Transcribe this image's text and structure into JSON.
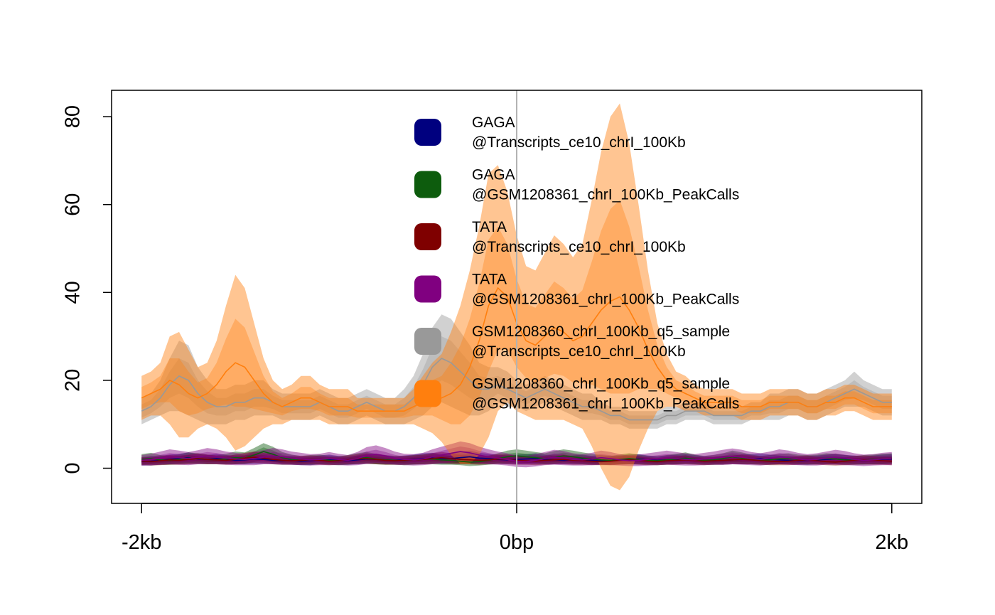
{
  "chart_data": {
    "type": "area",
    "x": [
      -2000,
      -1950,
      -1900,
      -1850,
      -1800,
      -1750,
      -1700,
      -1650,
      -1600,
      -1550,
      -1500,
      -1450,
      -1400,
      -1350,
      -1300,
      -1250,
      -1200,
      -1150,
      -1100,
      -1050,
      -1000,
      -950,
      -900,
      -850,
      -800,
      -750,
      -700,
      -650,
      -600,
      -550,
      -500,
      -450,
      -400,
      -350,
      -300,
      -250,
      -200,
      -150,
      -100,
      -50,
      0,
      50,
      100,
      150,
      200,
      250,
      300,
      350,
      400,
      450,
      500,
      550,
      600,
      650,
      700,
      750,
      800,
      850,
      900,
      950,
      1000,
      1050,
      1100,
      1150,
      1200,
      1250,
      1300,
      1350,
      1400,
      1450,
      1500,
      1550,
      1600,
      1650,
      1700,
      1750,
      1800,
      1850,
      1900,
      1950,
      2000
    ],
    "xticks": [
      {
        "value": -2000,
        "label": "-2kb"
      },
      {
        "value": 0,
        "label": "0bp"
      },
      {
        "value": 2000,
        "label": "2kb"
      }
    ],
    "yticks": [
      0,
      20,
      40,
      60,
      80
    ],
    "ylim": [
      -8,
      86
    ],
    "xlim": [
      -2160,
      2160
    ],
    "vline_x": 0,
    "grid": false,
    "legend_position": "top-center",
    "series": [
      {
        "legend": [
          "GAGA",
          "@Transcripts_ce10_chrI_100Kb"
        ],
        "color": "#00007f",
        "mean": [
          1.5,
          1.6,
          1.8,
          2.0,
          2.2,
          2.4,
          2.1,
          2.0,
          2.2,
          2.0,
          1.8,
          1.9,
          2.1,
          2.0,
          1.8,
          1.7,
          1.8,
          1.6,
          1.7,
          1.9,
          2.0,
          1.8,
          1.7,
          1.9,
          2.1,
          2.0,
          1.9,
          1.8,
          1.9,
          2.0,
          2.2,
          2.3,
          2.1,
          2.2,
          2.4,
          2.6,
          2.3,
          2.2,
          2.0,
          1.9,
          2.0,
          2.1,
          2.2,
          2.0,
          1.9,
          1.8,
          1.9,
          2.0,
          1.8,
          1.7,
          1.8,
          1.9,
          2.0,
          2.1,
          1.9,
          1.8,
          1.9,
          2.0,
          2.1,
          2.0,
          1.8,
          1.7,
          1.8,
          1.9,
          2.0,
          2.1,
          2.2,
          2.0,
          1.9,
          1.8,
          1.7,
          1.8,
          1.9,
          2.0,
          2.1,
          2.0,
          1.9,
          1.8,
          1.9,
          2.0,
          2.1
        ],
        "spread": [
          0.9,
          1.0,
          1.0,
          1.1,
          1.1,
          1.2,
          1.1,
          1.0,
          1.1,
          1.0,
          0.9,
          1.0,
          1.1,
          1.0,
          0.9,
          0.9,
          1.0,
          0.9,
          1.0,
          1.0,
          1.1,
          1.0,
          0.9,
          1.0,
          1.1,
          1.0,
          1.0,
          0.9,
          1.0,
          1.1,
          1.2,
          1.2,
          1.1,
          1.2,
          1.3,
          1.4,
          1.2,
          1.1,
          1.0,
          1.0,
          1.1,
          1.1,
          1.2,
          1.1,
          1.0,
          0.9,
          1.0,
          1.1,
          1.0,
          0.9,
          1.0,
          1.0,
          1.1,
          1.1,
          1.0,
          0.9,
          1.0,
          1.1,
          1.1,
          1.0,
          0.9,
          0.9,
          1.0,
          1.0,
          1.1,
          1.1,
          1.2,
          1.1,
          1.0,
          0.9,
          0.9,
          1.0,
          1.0,
          1.1,
          1.1,
          1.0,
          1.0,
          0.9,
          1.0,
          1.1,
          1.1
        ]
      },
      {
        "legend": [
          "GAGA",
          "@GSM1208361_chrI_100Kb_PeakCalls"
        ],
        "color": "#0d5c0d",
        "mean": [
          2.0,
          2.2,
          1.9,
          1.8,
          2.0,
          2.3,
          2.2,
          2.0,
          1.9,
          2.1,
          2.4,
          2.3,
          3.0,
          3.8,
          3.2,
          2.4,
          2.0,
          1.8,
          1.9,
          2.0,
          1.8,
          1.7,
          1.9,
          2.2,
          2.4,
          2.1,
          1.9,
          1.8,
          1.7,
          1.9,
          2.0,
          2.1,
          1.9,
          1.8,
          1.6,
          1.4,
          1.5,
          1.8,
          2.2,
          2.6,
          2.8,
          2.6,
          2.4,
          2.2,
          2.5,
          2.8,
          2.6,
          2.3,
          2.1,
          1.9,
          1.8,
          2.0,
          2.2,
          2.0,
          1.8,
          1.7,
          1.9,
          2.1,
          2.3,
          2.0,
          1.8,
          1.9,
          2.2,
          2.6,
          2.3,
          2.0,
          1.8,
          1.9,
          2.1,
          2.2,
          2.0,
          1.9,
          2.0,
          2.2,
          2.1,
          1.9,
          1.8,
          1.9,
          2.0,
          2.1,
          2.2
        ],
        "spread": [
          1.2,
          1.3,
          1.1,
          1.0,
          1.1,
          1.3,
          1.2,
          1.1,
          1.0,
          1.2,
          1.4,
          1.3,
          1.6,
          1.9,
          1.7,
          1.3,
          1.1,
          1.0,
          1.1,
          1.1,
          1.0,
          1.0,
          1.1,
          1.2,
          1.3,
          1.2,
          1.1,
          1.0,
          1.0,
          1.1,
          1.1,
          1.2,
          1.1,
          1.0,
          0.9,
          0.9,
          0.9,
          1.0,
          1.2,
          1.4,
          1.5,
          1.4,
          1.3,
          1.2,
          1.4,
          1.5,
          1.4,
          1.3,
          1.2,
          1.1,
          1.0,
          1.1,
          1.2,
          1.1,
          1.0,
          1.0,
          1.1,
          1.2,
          1.3,
          1.1,
          1.0,
          1.1,
          1.2,
          1.4,
          1.3,
          1.1,
          1.0,
          1.1,
          1.2,
          1.2,
          1.1,
          1.1,
          1.1,
          1.2,
          1.2,
          1.1,
          1.0,
          1.1,
          1.1,
          1.2,
          1.2
        ]
      },
      {
        "legend": [
          "TATA",
          "@Transcripts_ce10_chrI_100Kb"
        ],
        "color": "#7f0000",
        "mean": [
          1.6,
          1.5,
          1.7,
          1.9,
          1.8,
          2.0,
          2.2,
          2.0,
          1.9,
          1.8,
          2.0,
          2.3,
          2.5,
          2.3,
          2.0,
          1.8,
          1.7,
          1.8,
          1.9,
          1.8,
          1.6,
          1.7,
          1.9,
          2.1,
          2.2,
          2.0,
          1.8,
          1.7,
          1.8,
          1.9,
          2.0,
          2.2,
          2.4,
          2.2,
          2.0,
          1.9,
          1.8,
          1.9,
          2.1,
          2.0,
          1.8,
          1.7,
          1.6,
          1.8,
          1.9,
          2.0,
          1.8,
          1.7,
          1.6,
          1.5,
          1.6,
          1.8,
          1.9,
          1.8,
          1.6,
          1.5,
          1.7,
          1.8,
          1.9,
          1.7,
          1.6,
          1.7,
          1.8,
          1.9,
          2.0,
          1.9,
          1.7,
          1.6,
          1.5,
          1.6,
          1.8,
          1.9,
          1.7,
          1.5,
          1.4,
          1.6,
          1.8,
          1.9,
          1.8,
          1.7,
          1.6
        ],
        "spread": [
          0.9,
          0.9,
          1.0,
          1.1,
          1.0,
          1.1,
          1.2,
          1.1,
          1.0,
          1.0,
          1.1,
          1.2,
          1.3,
          1.2,
          1.1,
          1.0,
          0.9,
          1.0,
          1.0,
          1.0,
          0.9,
          0.9,
          1.0,
          1.1,
          1.2,
          1.1,
          1.0,
          0.9,
          1.0,
          1.0,
          1.1,
          1.2,
          1.3,
          1.2,
          1.1,
          1.0,
          1.0,
          1.0,
          1.1,
          1.1,
          1.0,
          0.9,
          0.9,
          1.0,
          1.0,
          1.1,
          1.0,
          0.9,
          0.9,
          0.8,
          0.9,
          1.0,
          1.0,
          1.0,
          0.9,
          0.8,
          0.9,
          1.0,
          1.0,
          0.9,
          0.9,
          0.9,
          1.0,
          1.0,
          1.1,
          1.0,
          0.9,
          0.9,
          0.8,
          0.9,
          1.0,
          1.0,
          0.9,
          0.8,
          0.8,
          0.9,
          1.0,
          1.0,
          1.0,
          0.9,
          0.9
        ]
      },
      {
        "legend": [
          "TATA",
          "@GSM1208361_chrI_100Kb_PeakCalls"
        ],
        "color": "#800080",
        "mean": [
          1.8,
          2.0,
          2.3,
          2.6,
          2.4,
          2.2,
          2.5,
          2.8,
          2.6,
          2.3,
          2.1,
          2.0,
          2.2,
          2.5,
          2.8,
          2.6,
          2.3,
          2.1,
          1.9,
          2.0,
          2.2,
          2.0,
          1.8,
          2.2,
          2.9,
          3.2,
          2.8,
          2.3,
          2.0,
          1.9,
          2.1,
          2.6,
          3.0,
          3.4,
          3.8,
          3.5,
          3.0,
          2.6,
          2.3,
          2.0,
          1.6,
          1.5,
          1.8,
          2.2,
          2.5,
          2.3,
          2.0,
          1.9,
          2.1,
          2.4,
          2.2,
          1.9,
          1.7,
          1.8,
          2.0,
          2.2,
          2.4,
          2.2,
          2.0,
          1.9,
          2.1,
          2.3,
          2.5,
          2.7,
          2.5,
          2.2,
          2.0,
          2.3,
          2.6,
          2.4,
          2.1,
          1.9,
          2.0,
          2.3,
          2.5,
          2.3,
          2.0,
          1.8,
          1.9,
          2.1,
          2.2
        ],
        "spread": [
          1.2,
          1.3,
          1.5,
          1.7,
          1.6,
          1.5,
          1.6,
          1.8,
          1.7,
          1.5,
          1.4,
          1.3,
          1.5,
          1.6,
          1.8,
          1.7,
          1.5,
          1.4,
          1.3,
          1.3,
          1.5,
          1.3,
          1.2,
          1.5,
          1.9,
          2.0,
          1.8,
          1.5,
          1.3,
          1.3,
          1.4,
          1.7,
          1.9,
          2.1,
          2.3,
          2.2,
          1.9,
          1.7,
          1.5,
          1.4,
          1.3,
          1.3,
          1.4,
          1.5,
          1.7,
          1.6,
          1.4,
          1.3,
          1.4,
          1.6,
          1.5,
          1.3,
          1.2,
          1.3,
          1.4,
          1.5,
          1.6,
          1.5,
          1.4,
          1.3,
          1.4,
          1.5,
          1.7,
          1.8,
          1.7,
          1.5,
          1.4,
          1.5,
          1.7,
          1.6,
          1.4,
          1.3,
          1.4,
          1.5,
          1.7,
          1.6,
          1.4,
          1.3,
          1.3,
          1.4,
          1.5
        ]
      },
      {
        "legend": [
          "GSM1208360_chrI_100Kb_q5_sample",
          "@Transcripts_ce10_chrI_100Kb"
        ],
        "color": "#999999",
        "mean": [
          13,
          14,
          16,
          19,
          21,
          20,
          17,
          15,
          14,
          14,
          15,
          15,
          16,
          16,
          15,
          14,
          14,
          14,
          14,
          15,
          14,
          13,
          13,
          14,
          15,
          14,
          13,
          13,
          14,
          16,
          19,
          23,
          25,
          24,
          22,
          20,
          18,
          18,
          19,
          18,
          17,
          16,
          17,
          18,
          17,
          16,
          15,
          14,
          14,
          13,
          12,
          12,
          11,
          11,
          11,
          11,
          12,
          12,
          13,
          13,
          13,
          12,
          12,
          12,
          12,
          13,
          13,
          14,
          14,
          15,
          15,
          14,
          14,
          15,
          16,
          17,
          18,
          17,
          16,
          15,
          15
        ],
        "spread": [
          3,
          3,
          4,
          6,
          8,
          8,
          6,
          5,
          4,
          4,
          4,
          4,
          4,
          4,
          3,
          3,
          3,
          3,
          3,
          3,
          3,
          3,
          3,
          3,
          3,
          3,
          3,
          3,
          4,
          5,
          7,
          9,
          10,
          10,
          9,
          8,
          6,
          5,
          4,
          4,
          3,
          3,
          3,
          3,
          3,
          3,
          3,
          3,
          3,
          2,
          2,
          2,
          2,
          2,
          2,
          2,
          2,
          2,
          2,
          2,
          2,
          2,
          2,
          2,
          2,
          2,
          2,
          3,
          3,
          3,
          3,
          3,
          3,
          3,
          3,
          3,
          4,
          3,
          3,
          3,
          3
        ]
      },
      {
        "legend": [
          "GSM1208360_chrI_100Kb_q5_sample",
          "@GSM1208361_chrI_100Kb_PeakCalls"
        ],
        "color": "#ff7f0e",
        "mean": [
          16,
          17,
          18,
          20,
          19,
          17,
          16,
          17,
          19,
          22,
          24,
          23,
          20,
          17,
          15,
          14,
          15,
          16,
          16,
          15,
          14,
          14,
          14,
          13,
          13,
          13,
          13,
          13,
          13,
          14,
          15,
          16,
          16,
          17,
          19,
          23,
          29,
          37,
          41,
          39,
          33,
          29,
          28,
          30,
          32,
          31,
          29,
          30,
          33,
          36,
          38,
          39,
          36,
          32,
          27,
          23,
          20,
          18,
          17,
          16,
          15,
          15,
          15,
          15,
          14,
          14,
          14,
          15,
          15,
          15,
          15,
          14,
          14,
          15,
          15,
          16,
          16,
          15,
          14,
          14,
          14
        ],
        "spread": [
          5,
          5,
          6,
          10,
          12,
          10,
          7,
          7,
          10,
          15,
          20,
          18,
          13,
          8,
          5,
          4,
          4,
          5,
          5,
          4,
          4,
          4,
          4,
          3,
          3,
          3,
          3,
          3,
          3,
          4,
          6,
          8,
          10,
          14,
          18,
          22,
          26,
          30,
          28,
          24,
          20,
          17,
          17,
          19,
          21,
          20,
          19,
          21,
          28,
          36,
          42,
          44,
          38,
          28,
          18,
          10,
          6,
          4,
          4,
          3,
          3,
          3,
          3,
          3,
          3,
          3,
          3,
          3,
          3,
          3,
          3,
          3,
          3,
          3,
          3,
          3,
          3,
          3,
          3,
          3,
          3
        ]
      }
    ]
  }
}
